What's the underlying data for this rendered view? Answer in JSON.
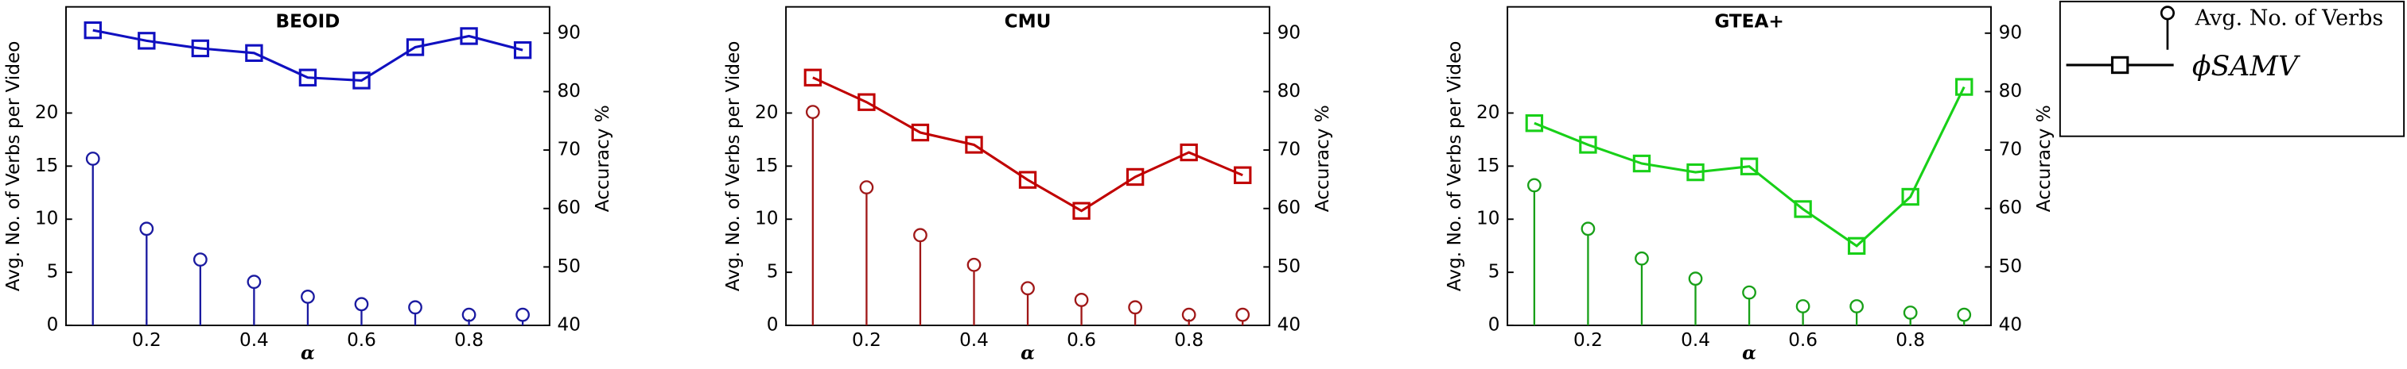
{
  "chart_data": [
    {
      "type": "stem_line",
      "title": "BEOID",
      "x_label": "α",
      "y_label": "Avg. No. of Verbs per Video",
      "y2_label": "Accuracy %",
      "x": [
        0.1,
        0.2,
        0.3,
        0.4,
        0.5,
        0.6,
        0.7,
        0.8,
        0.9
      ],
      "xlim": [
        0.05,
        0.95
      ],
      "xticks": [
        0.2,
        0.4,
        0.6,
        0.8
      ],
      "ylim": [
        0,
        30
      ],
      "yticks": [
        0,
        5,
        10,
        15,
        20
      ],
      "y2lim": [
        40,
        94.5
      ],
      "y2ticks": [
        40,
        50,
        60,
        70,
        80,
        90
      ],
      "series": [
        {
          "name": "Avg. No. of Verbs",
          "color": "#1a1aa0",
          "values": [
            15.7,
            9.1,
            6.2,
            4.1,
            2.7,
            2.0,
            1.7,
            1.0,
            1.0
          ]
        },
        {
          "name": "ϕSAMV",
          "color": "#1010c0",
          "axis": "y2",
          "values": [
            90.5,
            88.7,
            87.4,
            86.6,
            82.4,
            81.9,
            87.6,
            89.5,
            87.1
          ]
        }
      ]
    },
    {
      "type": "stem_line",
      "title": "CMU",
      "x_label": "α",
      "y_label": "Avg. No. of Verbs per Video",
      "y2_label": "Accuracy %",
      "x": [
        0.1,
        0.2,
        0.3,
        0.4,
        0.5,
        0.6,
        0.7,
        0.8,
        0.9
      ],
      "xlim": [
        0.05,
        0.95
      ],
      "xticks": [
        0.2,
        0.4,
        0.6,
        0.8
      ],
      "ylim": [
        0,
        30
      ],
      "yticks": [
        0,
        5,
        10,
        15,
        20
      ],
      "y2lim": [
        40,
        94.5
      ],
      "y2ticks": [
        40,
        50,
        60,
        70,
        80,
        90
      ],
      "series": [
        {
          "name": "Avg. No. of Verbs",
          "color": "#a01818",
          "values": [
            20.1,
            13.0,
            8.5,
            5.7,
            3.5,
            2.4,
            1.7,
            1.0,
            1.0
          ]
        },
        {
          "name": "ϕSAMV",
          "color": "#c00000",
          "axis": "y2",
          "values": [
            82.4,
            78.2,
            73.0,
            70.9,
            64.9,
            59.6,
            65.4,
            69.6,
            65.7
          ]
        }
      ]
    },
    {
      "type": "stem_line",
      "title": "GTEA+",
      "x_label": "α",
      "y_label": "Avg. No. of Verbs per Video",
      "y2_label": "Accuracy %",
      "x": [
        0.1,
        0.2,
        0.3,
        0.4,
        0.5,
        0.6,
        0.7,
        0.8,
        0.9
      ],
      "xlim": [
        0.05,
        0.95
      ],
      "xticks": [
        0.2,
        0.4,
        0.6,
        0.8
      ],
      "ylim": [
        0,
        30
      ],
      "yticks": [
        0,
        5,
        10,
        15,
        20
      ],
      "y2lim": [
        40,
        94.5
      ],
      "y2ticks": [
        40,
        50,
        60,
        70,
        80,
        90
      ],
      "series": [
        {
          "name": "Avg. No. of Verbs",
          "color": "#18a018",
          "values": [
            13.2,
            9.1,
            6.3,
            4.4,
            3.1,
            1.8,
            1.8,
            1.2,
            1.0
          ]
        },
        {
          "name": "ϕSAMV",
          "color": "#18d018",
          "axis": "y2",
          "values": [
            74.6,
            70.9,
            67.7,
            66.2,
            67.2,
            59.9,
            53.6,
            62.0,
            80.8
          ]
        }
      ]
    }
  ]
}
